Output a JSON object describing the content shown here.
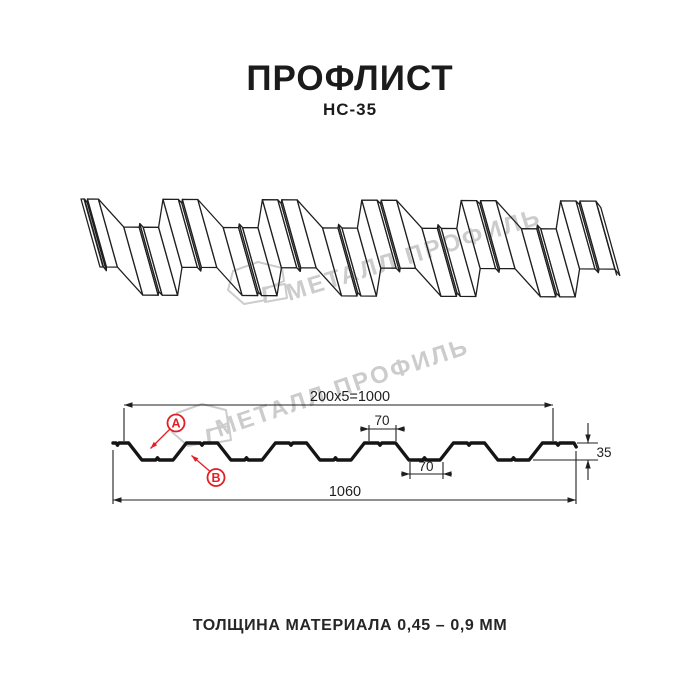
{
  "header": {
    "title": "ПРОФЛИСТ",
    "subtitle": "НС-35"
  },
  "footer": {
    "text": "ТОЛЩИНА МАТЕРИАЛА 0,45 – 0,9 ММ"
  },
  "watermark": {
    "text": "МЕТАЛЛ ПРОФИЛЬ"
  },
  "dims": {
    "top_width": "200x5=1000",
    "crest_width": "70",
    "valley_width": "70",
    "height": "35",
    "full_width": "1060"
  },
  "callouts": {
    "a": "A",
    "b": "B"
  },
  "colors": {
    "accent_red": "#e31e24",
    "line": "#1f1f1f",
    "watermark": "#cccccc"
  }
}
